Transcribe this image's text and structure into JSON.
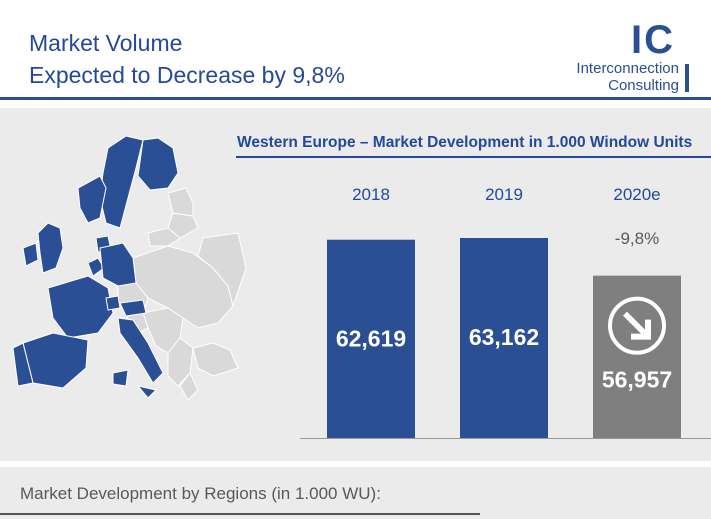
{
  "header": {
    "title_line1": "Market Volume",
    "title_line2": "Expected to Decrease by 9,8%"
  },
  "logo": {
    "mark": "IC",
    "line1": "Interconnection",
    "line2": "Consulting"
  },
  "colors": {
    "brand_blue": "#2b4f95",
    "forecast_gray": "#7f7f7f",
    "panel_gray": "#ebebeb"
  },
  "chart_data": {
    "type": "bar",
    "title": "Western Europe – Market Development in 1.000 Window Units",
    "categories": [
      "2018",
      "2019",
      "2020e"
    ],
    "values": [
      62619,
      63162,
      56957
    ],
    "value_labels": [
      "62,619",
      "63,162",
      "56,957"
    ],
    "annotations": [
      {
        "category": "2020e",
        "text": "-9,8%"
      }
    ],
    "ylim": [
      0,
      63162
    ]
  },
  "footer": {
    "section_title": "Market Development by Regions (in 1.000 WU):"
  }
}
